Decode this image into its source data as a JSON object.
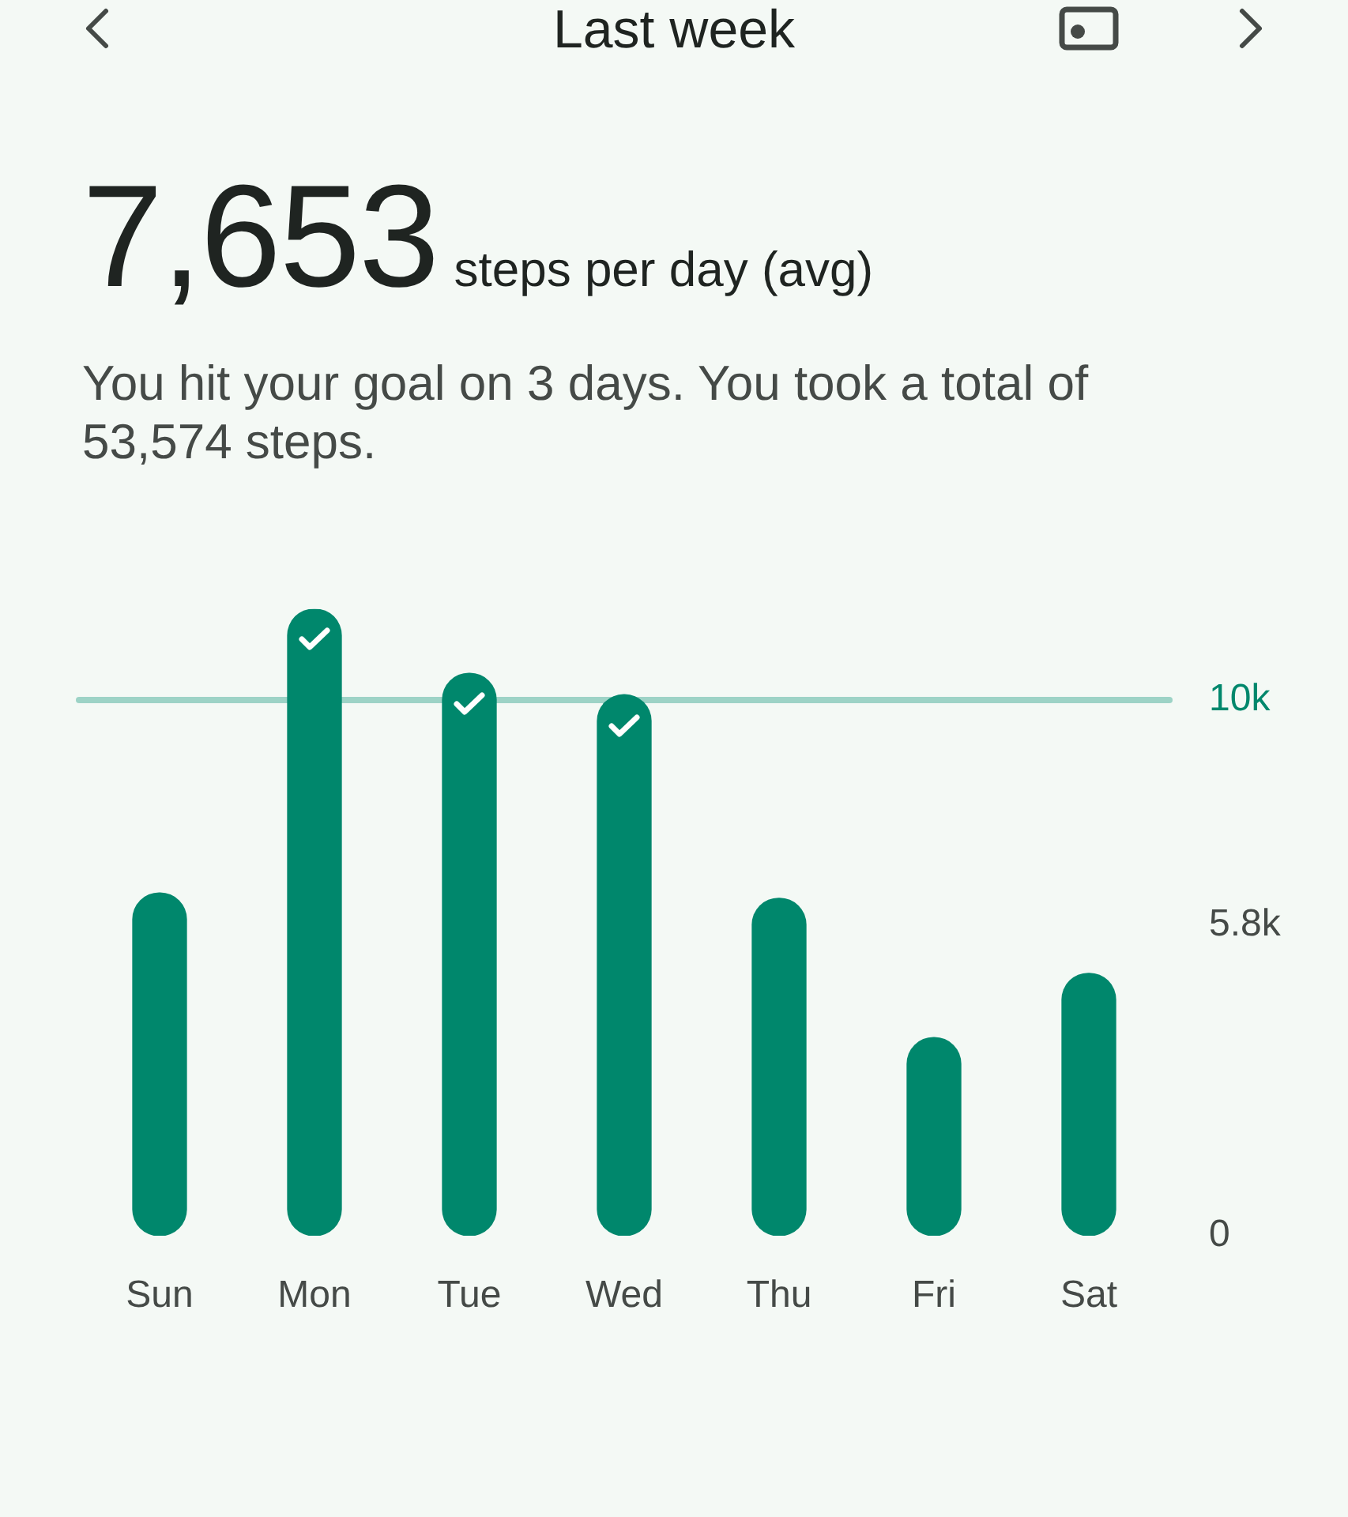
{
  "chart_data": {
    "type": "bar",
    "title": "Last week",
    "subtitle": "You hit your goal on 3 days. You took a total of 53,574 steps.",
    "annotations": [
      "7,653",
      "steps per day (avg)"
    ],
    "categories": [
      "Sun",
      "Mon",
      "Tue",
      "Wed",
      "Thu",
      "Fri",
      "Sat"
    ],
    "values": [
      6400,
      11700,
      10500,
      10100,
      6300,
      3700,
      4900
    ],
    "color": "#00876c",
    "ylim": [
      0,
      11700
    ],
    "yticks": [
      0,
      {
        "value": 5800,
        "label": "5.8k"
      },
      {
        "value": 10000,
        "label": "10k"
      }
    ],
    "ref_lines": [
      {
        "axis": "y",
        "value": 10000,
        "color": "#9dd3c6"
      }
    ]
  }
}
